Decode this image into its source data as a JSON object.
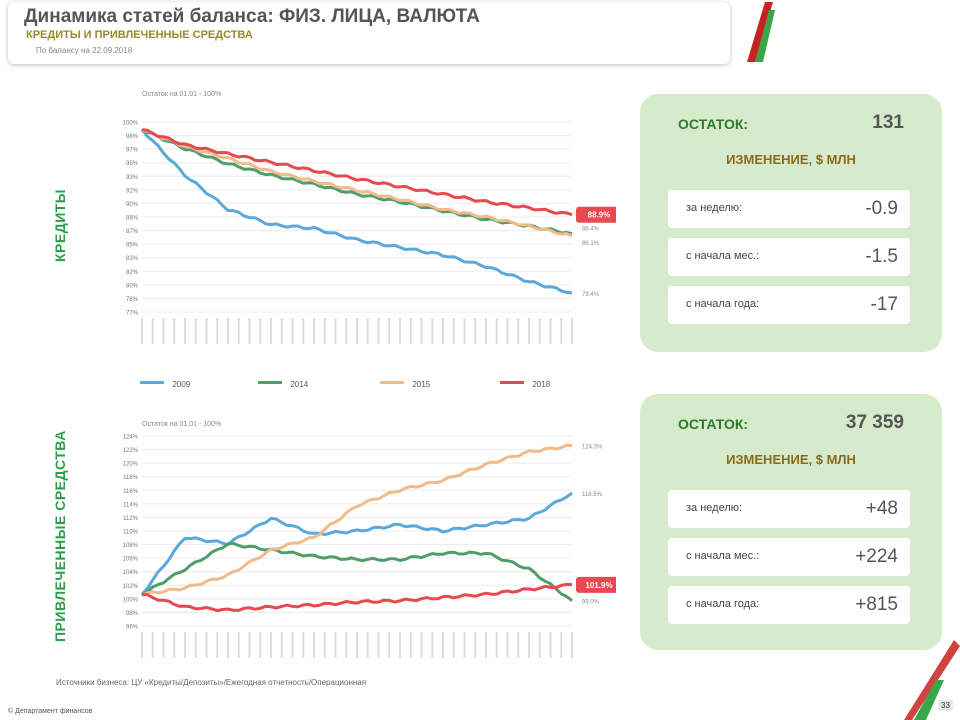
{
  "header": {
    "title": "Динамика статей баланса: ФИЗ. ЛИЦА, ВАЛЮТА",
    "subtitle": "КРЕДИТЫ И ПРИВЛЕЧЕННЫЕ СРЕДСТВА",
    "dateline": "По балансу на 22.09.2018"
  },
  "colors": {
    "green": "#2e9e4a",
    "blue": "#5ba8db",
    "orange": "#f2b98a",
    "red": "#e8484f",
    "dgreen": "#4f9e6a",
    "panel": "#d6ebcc"
  },
  "chart_data": [
    {
      "type": "line",
      "ylabel": "КРЕДИТЫ",
      "note": "Остаток на 01.01 - 100%",
      "yticks": [
        "100%",
        "98%",
        "97%",
        "95%",
        "93%",
        "92%",
        "90%",
        "88%",
        "87%",
        "85%",
        "83%",
        "82%",
        "80%",
        "78%",
        "77%"
      ],
      "ylim": [
        76,
        101
      ],
      "x": [
        0,
        10,
        20,
        30,
        40,
        50,
        60,
        70,
        80,
        90,
        100
      ],
      "series": [
        {
          "name": "2009",
          "color": "#5ba8db",
          "values": [
            100,
            94,
            89.5,
            87.5,
            87,
            85.5,
            84.5,
            83.5,
            82,
            80,
            78.5
          ],
          "end_label": "79.4%"
        },
        {
          "name": "2014",
          "color": "#4f9e6a",
          "values": [
            100,
            97.5,
            95.5,
            94,
            92.8,
            91.5,
            90.5,
            89.3,
            88.2,
            87.3,
            86.3
          ],
          "end_label": "86.4%"
        },
        {
          "name": "2015",
          "color": "#f2b98a",
          "values": [
            100,
            97.8,
            96.2,
            94.5,
            93.2,
            92,
            90.8,
            89.5,
            88.5,
            87.3,
            86
          ],
          "end_label": "86.1%"
        },
        {
          "name": "2018",
          "color": "#e8484f",
          "values": [
            100,
            98,
            96.8,
            95.7,
            94.6,
            93.5,
            92.5,
            91.5,
            90.5,
            89.7,
            88.8
          ],
          "end_label": "88.9%"
        }
      ]
    },
    {
      "type": "line",
      "ylabel": "ПРИВЛЕЧЕННЫЕ СРЕДСТВА",
      "note": "Остаток на 01.01 - 100%",
      "yticks": [
        "124%",
        "122%",
        "120%",
        "118%",
        "116%",
        "114%",
        "112%",
        "110%",
        "108%",
        "106%",
        "104%",
        "102%",
        "100%",
        "98%",
        "96%"
      ],
      "ylim": [
        95,
        125
      ],
      "x": [
        0,
        10,
        20,
        30,
        40,
        50,
        60,
        70,
        80,
        90,
        100
      ],
      "series": [
        {
          "name": "2009",
          "color": "#5ba8db",
          "values": [
            100,
            109,
            108,
            112,
            109.5,
            110,
            111,
            110,
            111,
            112,
            116
          ],
          "end_label": "116.5%"
        },
        {
          "name": "2014",
          "color": "#4f9e6a",
          "values": [
            100,
            104,
            108,
            107,
            106,
            105.5,
            105.5,
            106.5,
            106.5,
            104,
            99
          ],
          "end_label": "99.0%"
        },
        {
          "name": "2015",
          "color": "#f2b98a",
          "values": [
            100,
            101,
            103,
            107,
            109,
            114,
            116.5,
            118,
            120.5,
            122.5,
            123.5
          ],
          "end_label": "124.3%"
        },
        {
          "name": "2018",
          "color": "#e8484f",
          "values": [
            100,
            98,
            97.5,
            98,
            98.3,
            98.8,
            99,
            99.5,
            100,
            100.8,
            101.5
          ],
          "end_label": "101.9%"
        }
      ]
    }
  ],
  "legend": [
    {
      "label": "2009",
      "color": "#5ba8db"
    },
    {
      "label": "2014",
      "color": "#4f9e6a"
    },
    {
      "label": "2015",
      "color": "#f2b98a"
    },
    {
      "label": "2018",
      "color": "#e8484f"
    }
  ],
  "panels": [
    {
      "remainder_label": "ОСТАТОК:",
      "remainder_value": "131",
      "change_label": "ИЗМЕНЕНИЕ, $ МЛН",
      "rows": [
        {
          "label": "за неделю:",
          "value": "-0.9"
        },
        {
          "label": "с начала мес.:",
          "value": "-1.5"
        },
        {
          "label": "с начала года:",
          "value": "-17"
        }
      ]
    },
    {
      "remainder_label": "ОСТАТОК:",
      "remainder_value": "37 359",
      "change_label": "ИЗМЕНЕНИЕ, $ МЛН",
      "rows": [
        {
          "label": "за неделю:",
          "value": "+48"
        },
        {
          "label": "с начала мес.:",
          "value": "+224"
        },
        {
          "label": "с начала года:",
          "value": "+815"
        }
      ]
    }
  ],
  "source": "Источники бизнеса: ЦУ «Кредиты/Депозиты»/Ежегодная отчетность/Операционная",
  "footer": "© Департамент финансов",
  "page_number": "33"
}
